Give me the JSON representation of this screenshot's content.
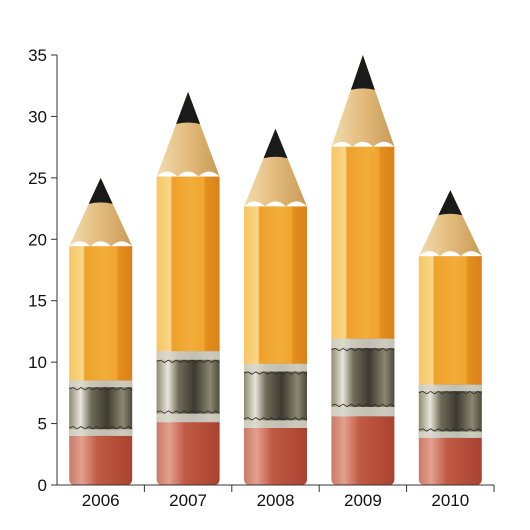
{
  "chart_data": {
    "type": "bar",
    "style": "pencil",
    "categories": [
      "2006",
      "2007",
      "2008",
      "2009",
      "2010"
    ],
    "values": [
      25,
      32,
      29,
      35,
      24
    ],
    "ylim": [
      0,
      35
    ],
    "yticks": [
      "0",
      "5",
      "10",
      "15",
      "20",
      "25",
      "30",
      "35"
    ],
    "xlabel": "",
    "ylabel": "",
    "title": "",
    "grid": false,
    "colors": {
      "pencil_body": "#f0a830",
      "pencil_body_light": "#f8cf6a",
      "pencil_body_dark": "#dd8a1c",
      "wood": "#e3bd7e",
      "lead": "#1a1a1a",
      "ferrule": "#8a8778",
      "eraser": "#c4604a",
      "axis": "#333333"
    }
  }
}
